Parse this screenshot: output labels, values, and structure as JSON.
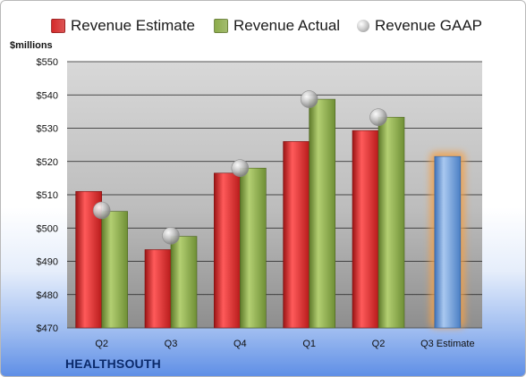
{
  "unit_label": "$millions",
  "company": "HEALTHSOUTH",
  "legend": [
    {
      "label": "Revenue Estimate",
      "color": "#d42a2a",
      "kind": "estimate"
    },
    {
      "label": "Revenue Actual",
      "color": "#8cab4a",
      "kind": "actual"
    },
    {
      "label": "Revenue GAAP",
      "color": "#b8b8b8",
      "kind": "gaap"
    }
  ],
  "colors": {
    "estimate": "#d42a2a",
    "actual": "#8cab4a",
    "gaap": "#b8b8b8",
    "forecast": "#6f9fd8",
    "forecast_glow": "#f2a04a"
  },
  "chart_data": {
    "type": "bar",
    "categories": [
      "Q2",
      "Q3",
      "Q4",
      "Q1",
      "Q2",
      "Q3 Estimate"
    ],
    "series": [
      {
        "name": "Revenue Estimate",
        "values": [
          511,
          493.5,
          516.5,
          526,
          529.3,
          521.5
        ]
      },
      {
        "name": "Revenue Actual",
        "values": [
          505,
          497.5,
          518,
          538.7,
          533.3,
          null
        ]
      },
      {
        "name": "Revenue GAAP",
        "values": [
          505.3,
          497.7,
          518,
          538.7,
          533.3,
          null
        ]
      }
    ],
    "ylabel": "$millions",
    "ylim": [
      470,
      550
    ],
    "yticks": [
      "$470",
      "$480",
      "$490",
      "$500",
      "$510",
      "$520",
      "$530",
      "$540",
      "$550"
    ],
    "ytick_values": [
      470,
      480,
      490,
      500,
      510,
      520,
      530,
      540,
      550
    ],
    "grid": true,
    "legend_position": "top"
  }
}
